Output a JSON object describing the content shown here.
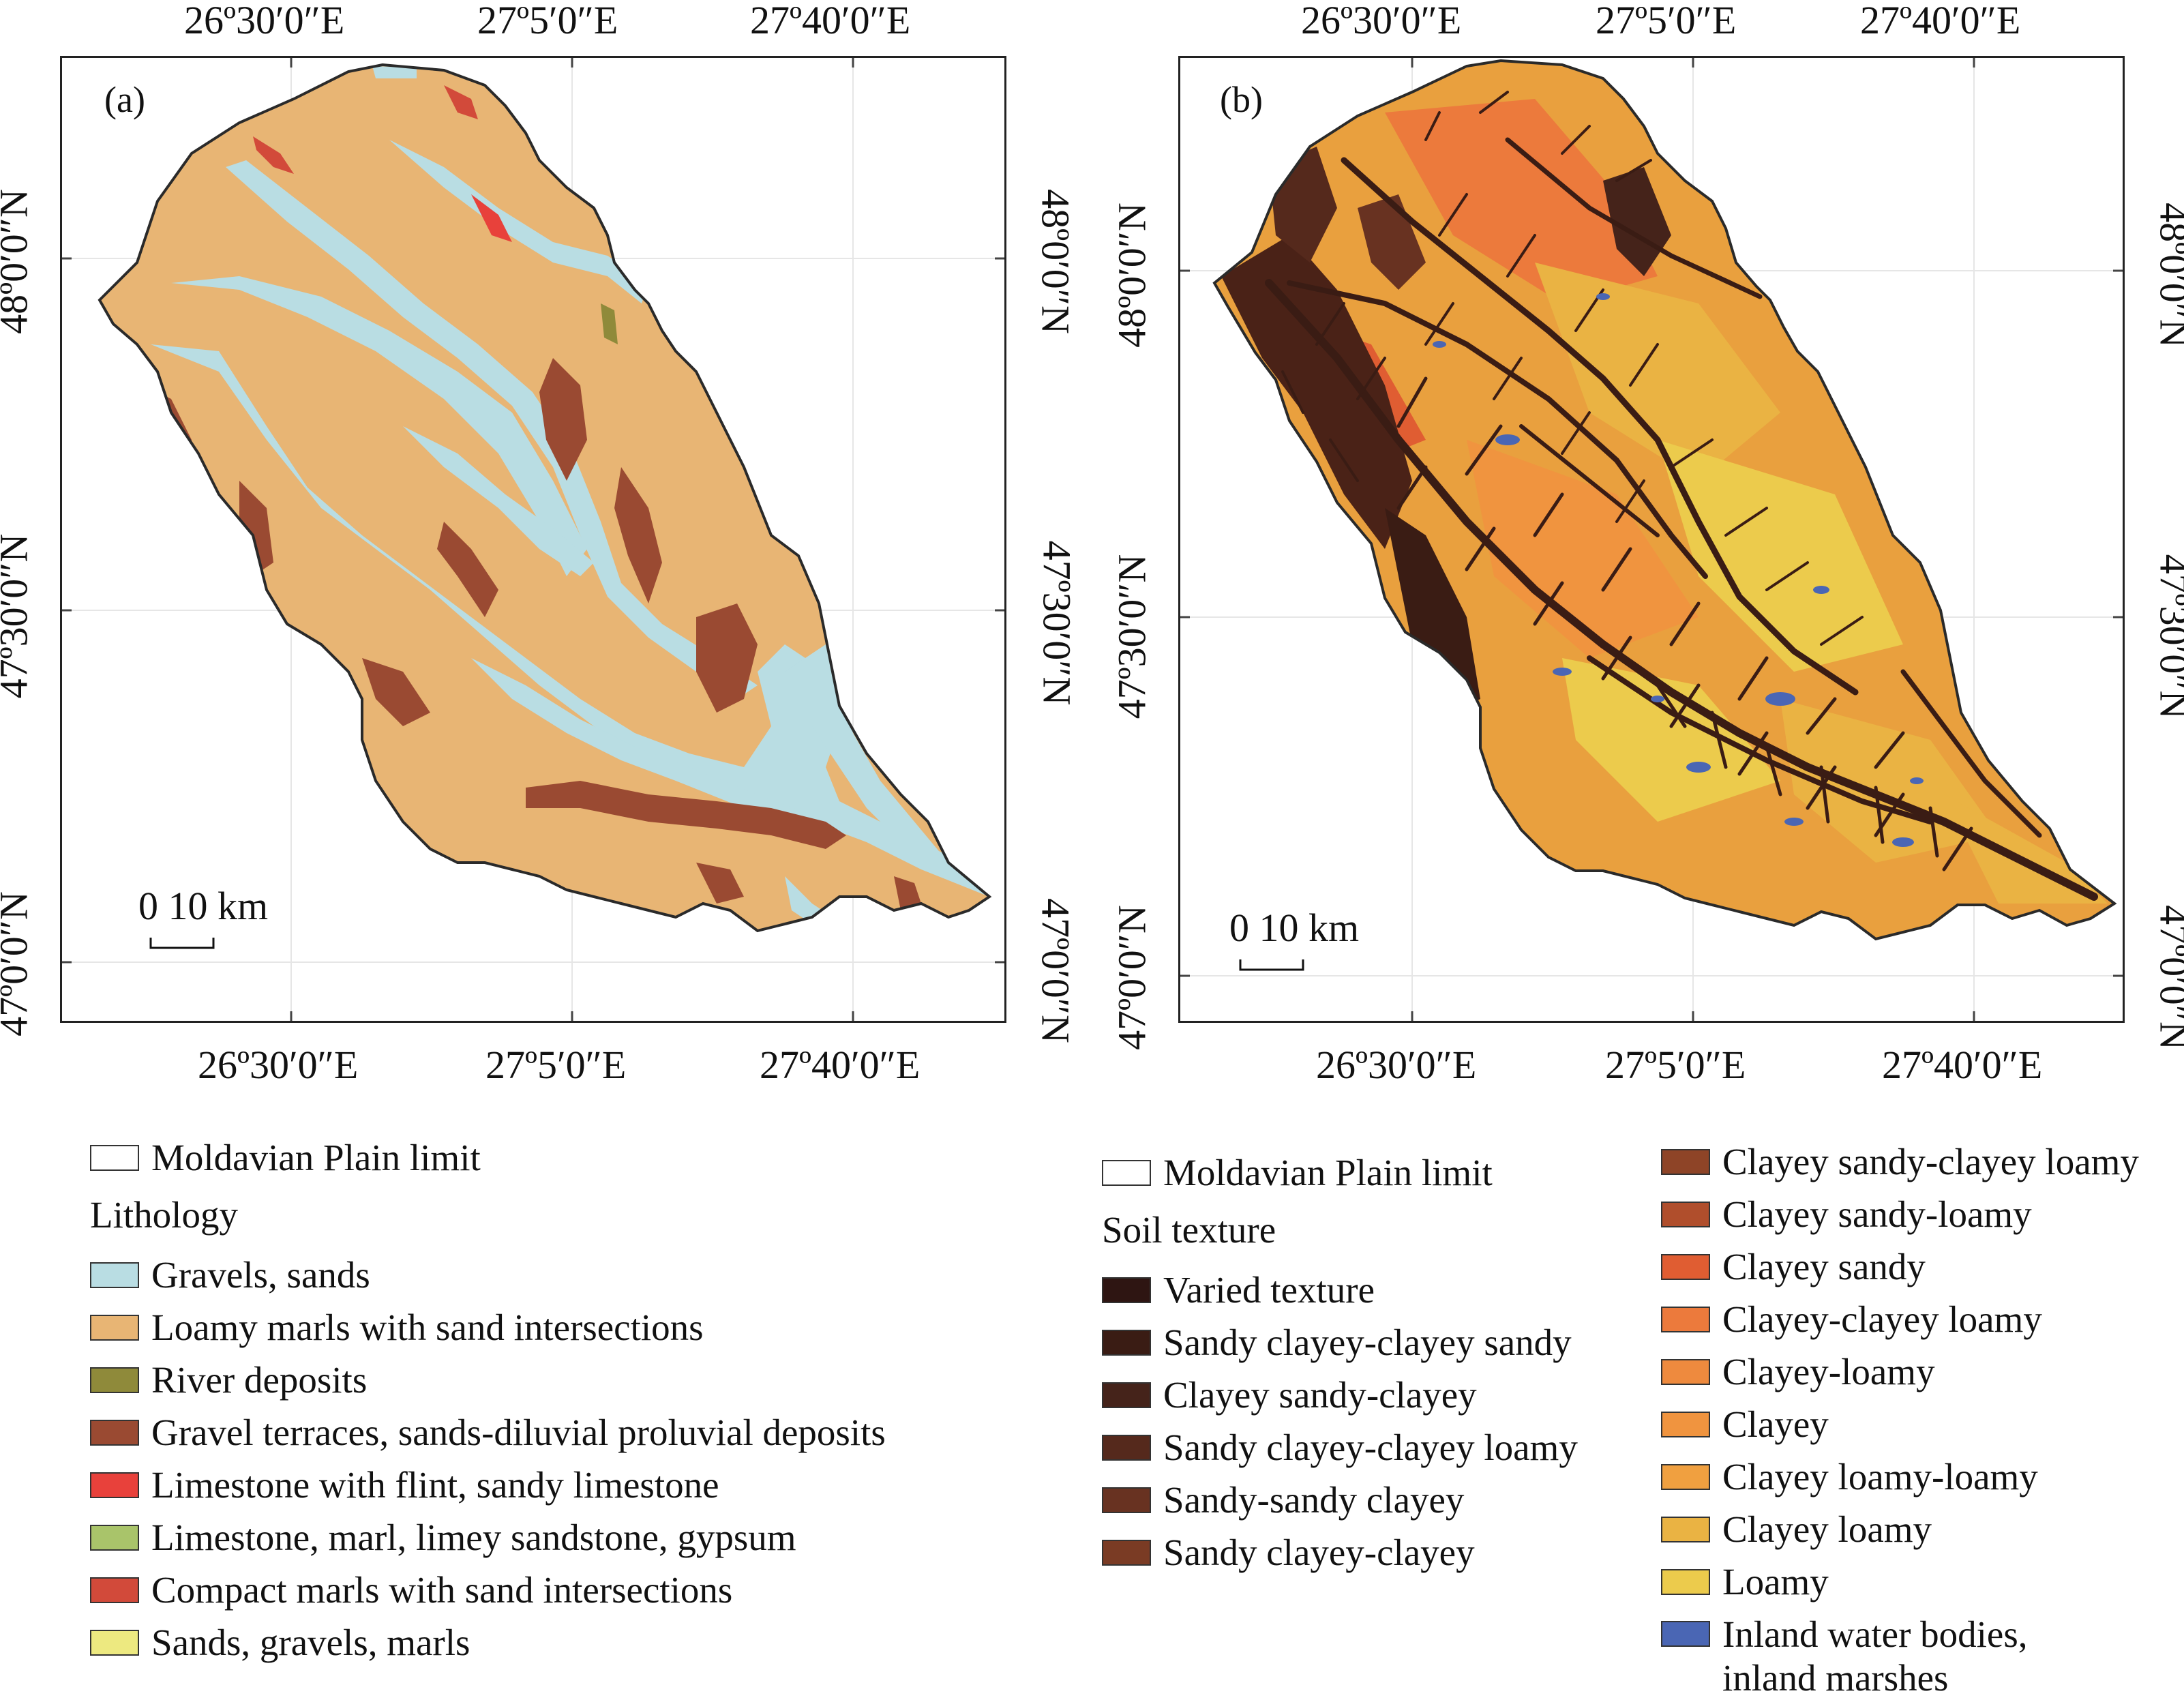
{
  "panel_a": {
    "label": "(a)",
    "scale_label": "0   10 km",
    "top_lon_labels": [
      "26º30′0″E",
      "27º5′0″E",
      "27º40′0″E"
    ],
    "bottom_lon_labels": [
      "26º30′0″E",
      "27º5′0″E",
      "27º40′0″E"
    ],
    "left_lat_labels": [
      "48º0′0″N",
      "47º30′0″N",
      "47º0′0″N"
    ],
    "right_lat_labels": [
      "48º0′0″N",
      "47º30′0″N",
      "47º0′0″N"
    ]
  },
  "panel_b": {
    "label": "(b)",
    "scale_label": "0   10 km",
    "top_lon_labels": [
      "26º30′0″E",
      "27º5′0″E",
      "27º40′0″E"
    ],
    "bottom_lon_labels": [
      "26º30′0″E",
      "27º5′0″E",
      "27º40′0″E"
    ],
    "left_lat_labels": [
      "48º0′0″N",
      "47º30′0″N",
      "47º0′0″N"
    ],
    "right_lat_labels": [
      "48º0′0″N",
      "47º30′0″N",
      "47º0′0″N"
    ]
  },
  "legend_a": {
    "limit_label": "Moldavian Plain limit",
    "title": "Lithology",
    "items": [
      {
        "label": "Gravels, sands",
        "color": "#b9dde3"
      },
      {
        "label": "Loamy marls with sand intersections",
        "color": "#e8b574"
      },
      {
        "label": "River deposits",
        "color": "#8f8a3a"
      },
      {
        "label": "Gravel terraces, sands-diluvial proluvial deposits",
        "color": "#9a4a32"
      },
      {
        "label": "Limestone with flint, sandy limestone",
        "color": "#e8413b"
      },
      {
        "label": "Limestone, marl, limey sandstone, gypsum",
        "color": "#a9c46a"
      },
      {
        "label": "Compact marls with sand intersections",
        "color": "#d24a3a"
      },
      {
        "label": "Sands, gravels, marls",
        "color": "#ede980"
      }
    ]
  },
  "legend_b": {
    "limit_label": "Moldavian Plain limit",
    "title": "Soil texture",
    "items_left": [
      {
        "label": "Varied texture",
        "color": "#2e1512"
      },
      {
        "label": "Sandy clayey-clayey sandy",
        "color": "#3a1c14"
      },
      {
        "label": "Clayey sandy-clayey",
        "color": "#45231a"
      },
      {
        "label": "Sandy clayey-clayey loamy",
        "color": "#55291c"
      },
      {
        "label": "Sandy-sandy clayey",
        "color": "#683221"
      },
      {
        "label": "Sandy clayey-clayey",
        "color": "#7a3b24"
      }
    ],
    "items_right": [
      {
        "label": "Clayey sandy-clayey loamy",
        "color": "#8e4427"
      },
      {
        "label": "Clayey sandy-loamy",
        "color": "#b04e2c"
      },
      {
        "label": "Clayey sandy",
        "color": "#e05d32"
      },
      {
        "label": "Clayey-clayey loamy",
        "color": "#ec7a3c"
      },
      {
        "label": "Clayey-loamy",
        "color": "#ee8a3e"
      },
      {
        "label": "Clayey",
        "color": "#f0943f"
      },
      {
        "label": "Clayey loamy-loamy",
        "color": "#f0a040"
      },
      {
        "label": "Clayey loamy",
        "color": "#eab343"
      },
      {
        "label": "Loamy",
        "color": "#eccb4c"
      },
      {
        "label": "Inland water bodies, inland marshes",
        "color": "#4a66b4"
      }
    ]
  },
  "colors": {
    "gravels": "#b9dde3",
    "loamy_marls": "#e8b574",
    "terraces": "#9a4a32",
    "soil_base": "#e9a03e",
    "soil_dark": "#4a2217",
    "water": "#4a66b4"
  }
}
